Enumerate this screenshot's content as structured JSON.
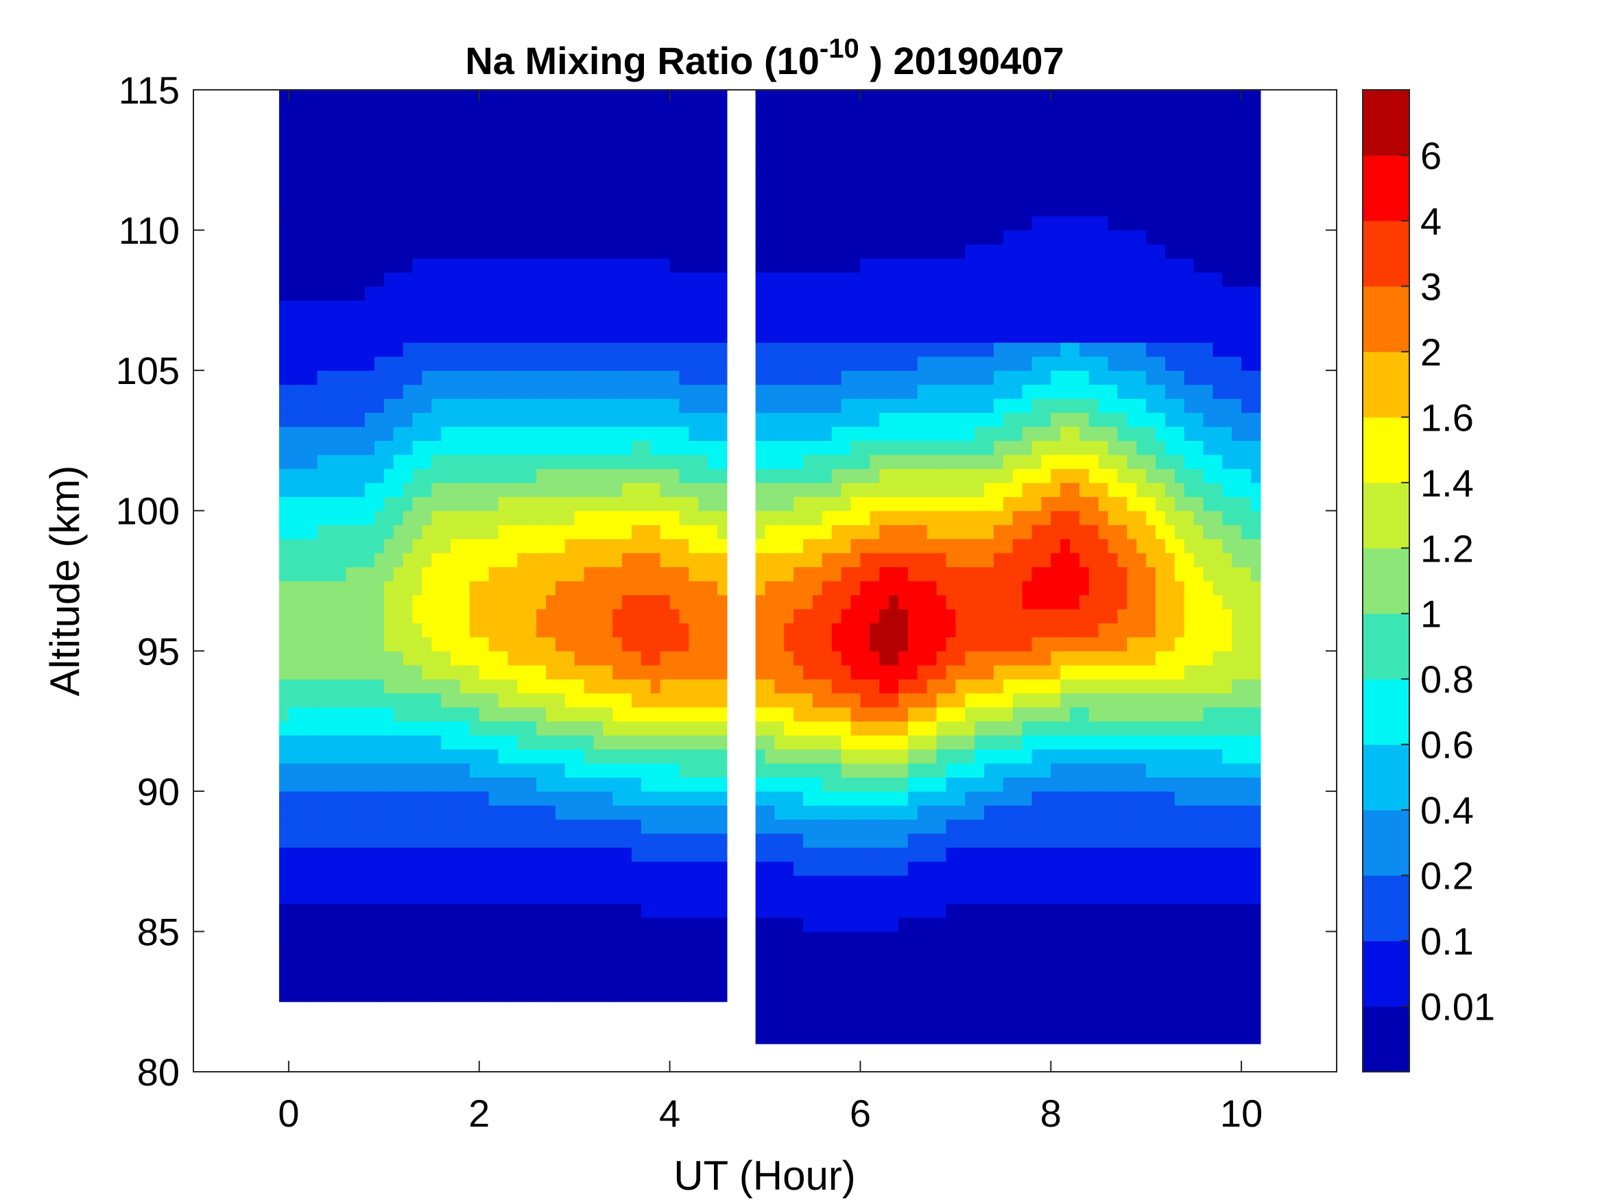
{
  "chart_data": {
    "type": "heatmap",
    "subtype": "filled-contour",
    "title": {
      "prefix": "Na Mixing Ratio (10",
      "exponent": "-10",
      "suffix": " ) 20190407"
    },
    "xlabel": "UT (Hour)",
    "ylabel": "Altitude (km)",
    "xlim": [
      -1,
      11
    ],
    "ylim": [
      80,
      115
    ],
    "xticks": [
      "0",
      "2",
      "4",
      "6",
      "8",
      "10"
    ],
    "yticks": [
      "80",
      "85",
      "90",
      "95",
      "100",
      "105",
      "110",
      "115"
    ],
    "grid": false,
    "colorbar": {
      "labels": [
        "0.01",
        "0.1",
        "0.2",
        "0.4",
        "0.6",
        "0.8",
        "1",
        "1.2",
        "1.4",
        "1.6",
        "2",
        "3",
        "4",
        "6"
      ],
      "colors": [
        "#0000b3",
        "#0010e6",
        "#0a4ff0",
        "#0a8cf0",
        "#00bef5",
        "#00f5f5",
        "#3ce6b4",
        "#8ce678",
        "#c8f032",
        "#ffff00",
        "#ffbe00",
        "#ff7800",
        "#ff3c00",
        "#ff0000",
        "#b40000"
      ]
    },
    "data_gap_ut": [
      4.6,
      4.9
    ],
    "data_coverage": [
      {
        "ut_start": -0.1,
        "ut_end": 4.6,
        "alt_min": 82.5,
        "alt_max": 115
      },
      {
        "ut_start": 4.9,
        "ut_end": 10.2,
        "alt_min": 81,
        "alt_max": 115
      }
    ],
    "layer": {
      "note": "",
      "peak_profile": [
        {
          "ut": -0.1,
          "alt": 95.5,
          "level": 7
        },
        {
          "ut": 0.8,
          "alt": 95.8,
          "level": 7
        },
        {
          "ut": 1.5,
          "alt": 96.6,
          "level": 9
        },
        {
          "ut": 2.2,
          "alt": 96.3,
          "level": 10
        },
        {
          "ut": 3.0,
          "alt": 96.0,
          "level": 11
        },
        {
          "ut": 3.8,
          "alt": 95.8,
          "level": 12
        },
        {
          "ut": 4.6,
          "alt": 95.4,
          "level": 11
        },
        {
          "ut": 4.9,
          "alt": 95.4,
          "level": 11
        },
        {
          "ut": 5.5,
          "alt": 95.3,
          "level": 12
        },
        {
          "ut": 6.3,
          "alt": 95.5,
          "level": 14
        },
        {
          "ut": 7.2,
          "alt": 96.2,
          "level": 12
        },
        {
          "ut": 8.2,
          "alt": 97.5,
          "level": 13
        },
        {
          "ut": 9.0,
          "alt": 96.8,
          "level": 11
        },
        {
          "ut": 9.6,
          "alt": 96.0,
          "level": 9
        },
        {
          "ut": 10.2,
          "alt": 95.5,
          "level": 8
        }
      ]
    }
  }
}
